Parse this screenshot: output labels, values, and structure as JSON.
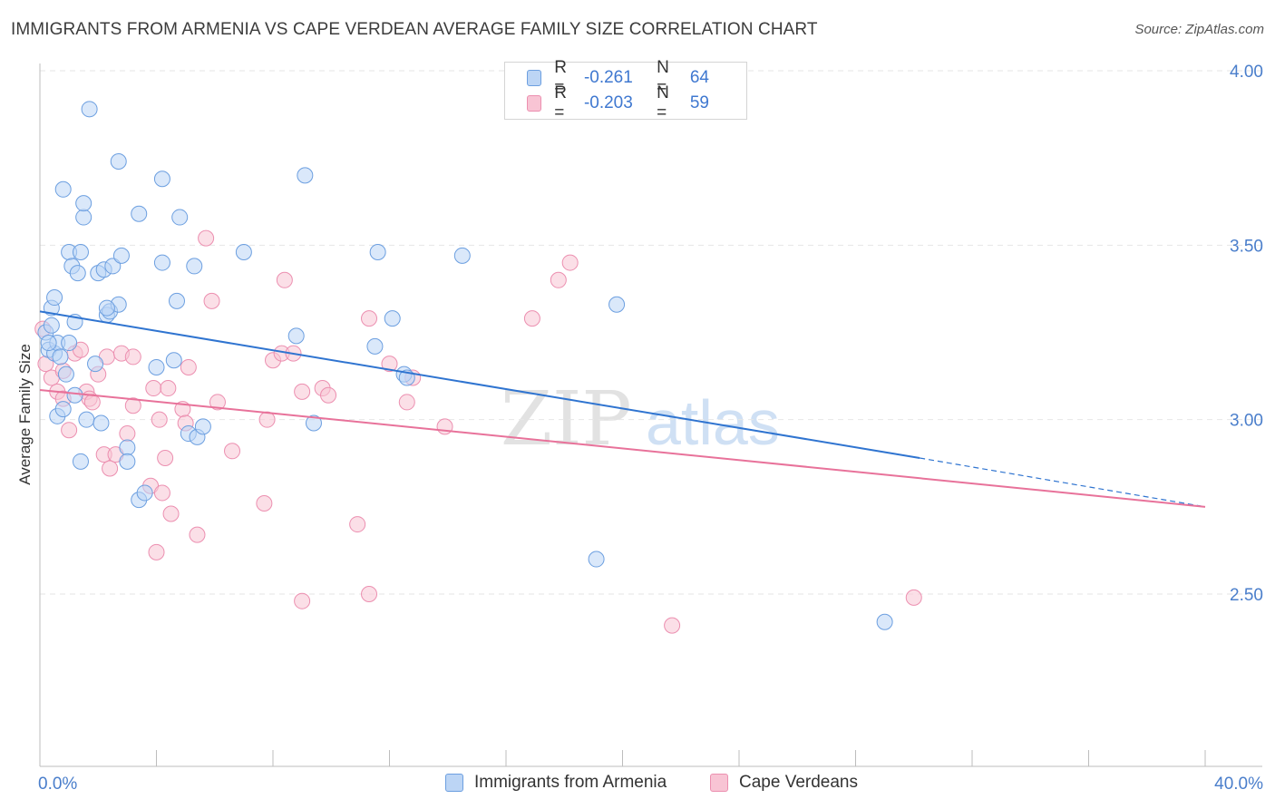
{
  "title": "IMMIGRANTS FROM ARMENIA VS CAPE VERDEAN AVERAGE FAMILY SIZE CORRELATION CHART",
  "source": "Source: ZipAtlas.com",
  "colors": {
    "blue_fill": "#bcd5f5",
    "blue_stroke": "#6c9fe0",
    "blue_line": "#2f74d0",
    "pink_fill": "#f8c4d4",
    "pink_stroke": "#ec8fb0",
    "pink_line": "#e8729a",
    "tick": "#4a7ecb",
    "grid": "#e6e6e6"
  },
  "legend_top": {
    "rows": [
      {
        "r_label": "R =",
        "r_value": "-0.261",
        "n_label": "N =",
        "n_value": "64"
      },
      {
        "r_label": "R =",
        "r_value": "-0.203",
        "n_label": "N =",
        "n_value": "59"
      }
    ]
  },
  "bottom_legend": {
    "series1": "Immigrants from Armenia",
    "series2": "Cape Verdeans"
  },
  "watermark": {
    "zip": "ZIP",
    "atlas": "atlas"
  },
  "chart_data": {
    "type": "scatter",
    "title": "IMMIGRANTS FROM ARMENIA VS CAPE VERDEAN AVERAGE FAMILY SIZE CORRELATION CHART",
    "xlabel": "",
    "ylabel": "Average Family Size",
    "xlim": [
      0,
      40
    ],
    "ylim": [
      2.0,
      4.08
    ],
    "x_tick_labels": [
      "0.0%",
      "40.0%"
    ],
    "y_ticks": [
      2.5,
      3.0,
      3.5,
      4.0
    ],
    "y_tick_labels": [
      "2.50",
      "3.00",
      "3.50",
      "4.00"
    ],
    "legend_position": "top-center",
    "series": [
      {
        "name": "Immigrants from Armenia",
        "color": "#6c9fe0",
        "trend": {
          "x0": 0,
          "y0": 3.31,
          "x1": 30.2,
          "y1": 2.89,
          "x_dash_end": 40,
          "y_dash_end": 2.75
        },
        "points": [
          [
            0.2,
            3.25
          ],
          [
            0.3,
            3.2
          ],
          [
            0.4,
            3.32
          ],
          [
            0.5,
            3.19
          ],
          [
            0.5,
            3.35
          ],
          [
            0.6,
            3.22
          ],
          [
            0.6,
            3.01
          ],
          [
            0.7,
            3.18
          ],
          [
            0.8,
            3.03
          ],
          [
            0.8,
            3.66
          ],
          [
            0.9,
            3.13
          ],
          [
            1.0,
            3.22
          ],
          [
            1.0,
            3.48
          ],
          [
            1.1,
            3.44
          ],
          [
            1.2,
            3.28
          ],
          [
            1.2,
            3.07
          ],
          [
            1.4,
            2.88
          ],
          [
            1.4,
            3.48
          ],
          [
            1.5,
            3.58
          ],
          [
            1.5,
            3.62
          ],
          [
            1.6,
            3.0
          ],
          [
            1.7,
            3.89
          ],
          [
            1.9,
            3.16
          ],
          [
            2.0,
            3.42
          ],
          [
            2.1,
            2.99
          ],
          [
            2.2,
            3.43
          ],
          [
            2.3,
            3.3
          ],
          [
            2.4,
            3.31
          ],
          [
            2.5,
            3.44
          ],
          [
            2.7,
            3.74
          ],
          [
            2.7,
            3.33
          ],
          [
            2.8,
            3.47
          ],
          [
            3.0,
            2.92
          ],
          [
            3.0,
            2.88
          ],
          [
            3.4,
            2.77
          ],
          [
            3.4,
            3.59
          ],
          [
            3.6,
            2.79
          ],
          [
            4.0,
            3.15
          ],
          [
            4.2,
            3.69
          ],
          [
            4.2,
            3.45
          ],
          [
            4.6,
            3.17
          ],
          [
            4.7,
            3.34
          ],
          [
            4.8,
            3.58
          ],
          [
            5.1,
            2.96
          ],
          [
            5.3,
            3.44
          ],
          [
            5.4,
            2.95
          ],
          [
            5.6,
            2.98
          ],
          [
            7.0,
            3.48
          ],
          [
            8.8,
            3.24
          ],
          [
            9.1,
            3.7
          ],
          [
            9.4,
            2.99
          ],
          [
            11.5,
            3.21
          ],
          [
            11.6,
            3.48
          ],
          [
            12.1,
            3.29
          ],
          [
            12.5,
            3.13
          ],
          [
            12.6,
            3.12
          ],
          [
            14.5,
            3.47
          ],
          [
            19.1,
            2.6
          ],
          [
            19.8,
            3.33
          ],
          [
            29.0,
            2.42
          ],
          [
            0.3,
            3.22
          ],
          [
            0.4,
            3.27
          ],
          [
            2.3,
            3.32
          ],
          [
            1.3,
            3.42
          ]
        ]
      },
      {
        "name": "Cape Verdeans",
        "color": "#ec8fb0",
        "trend": {
          "x0": 0,
          "y0": 3.085,
          "x1": 40,
          "y1": 2.75
        },
        "points": [
          [
            0.1,
            3.26
          ],
          [
            0.2,
            3.16
          ],
          [
            0.4,
            3.12
          ],
          [
            0.6,
            3.08
          ],
          [
            0.8,
            3.14
          ],
          [
            0.8,
            3.06
          ],
          [
            1.0,
            2.97
          ],
          [
            1.2,
            3.19
          ],
          [
            1.4,
            3.2
          ],
          [
            1.6,
            3.08
          ],
          [
            1.7,
            3.06
          ],
          [
            1.8,
            3.05
          ],
          [
            2.0,
            3.13
          ],
          [
            2.2,
            2.9
          ],
          [
            2.3,
            3.18
          ],
          [
            2.4,
            2.86
          ],
          [
            2.6,
            2.9
          ],
          [
            2.8,
            3.19
          ],
          [
            3.0,
            2.96
          ],
          [
            3.2,
            3.04
          ],
          [
            3.2,
            3.18
          ],
          [
            3.8,
            2.81
          ],
          [
            3.9,
            3.09
          ],
          [
            4.0,
            2.62
          ],
          [
            4.1,
            3.0
          ],
          [
            4.2,
            2.79
          ],
          [
            4.3,
            2.89
          ],
          [
            4.4,
            3.09
          ],
          [
            4.5,
            2.73
          ],
          [
            4.9,
            3.03
          ],
          [
            5.0,
            2.99
          ],
          [
            5.1,
            3.15
          ],
          [
            5.4,
            2.67
          ],
          [
            5.7,
            3.52
          ],
          [
            5.9,
            3.34
          ],
          [
            6.1,
            3.05
          ],
          [
            6.6,
            2.91
          ],
          [
            7.7,
            2.76
          ],
          [
            7.8,
            3.0
          ],
          [
            8.0,
            3.17
          ],
          [
            8.3,
            3.19
          ],
          [
            8.4,
            3.4
          ],
          [
            8.7,
            3.19
          ],
          [
            9.0,
            3.08
          ],
          [
            9.0,
            2.48
          ],
          [
            9.7,
            3.09
          ],
          [
            9.9,
            3.07
          ],
          [
            10.9,
            2.7
          ],
          [
            11.3,
            3.29
          ],
          [
            11.3,
            2.5
          ],
          [
            12.0,
            3.16
          ],
          [
            12.6,
            3.05
          ],
          [
            12.8,
            3.12
          ],
          [
            13.9,
            2.98
          ],
          [
            16.9,
            3.29
          ],
          [
            17.8,
            3.4
          ],
          [
            18.2,
            3.45
          ],
          [
            21.7,
            2.41
          ],
          [
            30.0,
            2.49
          ]
        ]
      }
    ]
  }
}
